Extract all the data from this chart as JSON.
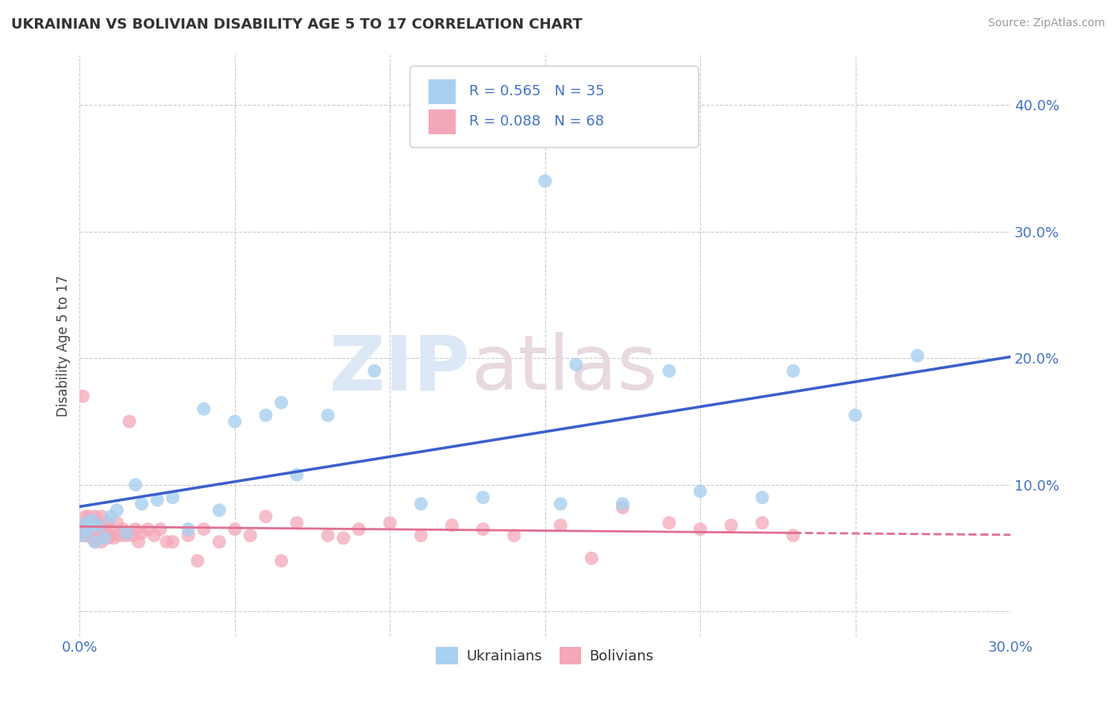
{
  "title": "UKRAINIAN VS BOLIVIAN DISABILITY AGE 5 TO 17 CORRELATION CHART",
  "source_text": "Source: ZipAtlas.com",
  "ylabel": "Disability Age 5 to 17",
  "xlim": [
    0.0,
    0.3
  ],
  "ylim": [
    -0.02,
    0.44
  ],
  "x_ticks": [
    0.0,
    0.05,
    0.1,
    0.15,
    0.2,
    0.25,
    0.3
  ],
  "x_tick_labels": [
    "0.0%",
    "",
    "",
    "",
    "",
    "",
    "30.0%"
  ],
  "y_ticks": [
    0.0,
    0.1,
    0.2,
    0.3,
    0.4
  ],
  "y_tick_labels": [
    "",
    "10.0%",
    "20.0%",
    "30.0%",
    "40.0%"
  ],
  "ukrainian_R": 0.565,
  "ukrainian_N": 35,
  "bolivian_R": 0.088,
  "bolivian_N": 68,
  "ukrainian_color": "#a8d0f0",
  "bolivian_color": "#f4a7b9",
  "ukrainian_line_color": "#3a5fcd",
  "bolivian_line_color": "#e07090",
  "background_color": "#ffffff",
  "grid_color": "#cccccc",
  "ukrainians_x": [
    0.001,
    0.002,
    0.003,
    0.004,
    0.005,
    0.006,
    0.008,
    0.01,
    0.012,
    0.015,
    0.018,
    0.02,
    0.025,
    0.03,
    0.035,
    0.04,
    0.045,
    0.05,
    0.06,
    0.065,
    0.07,
    0.08,
    0.095,
    0.11,
    0.13,
    0.15,
    0.155,
    0.16,
    0.175,
    0.19,
    0.2,
    0.22,
    0.23,
    0.25,
    0.27
  ],
  "ukrainians_y": [
    0.06,
    0.07,
    0.065,
    0.072,
    0.055,
    0.068,
    0.058,
    0.075,
    0.08,
    0.062,
    0.1,
    0.085,
    0.088,
    0.09,
    0.065,
    0.16,
    0.08,
    0.15,
    0.155,
    0.165,
    0.108,
    0.155,
    0.19,
    0.085,
    0.09,
    0.34,
    0.085,
    0.195,
    0.085,
    0.19,
    0.095,
    0.09,
    0.19,
    0.155,
    0.202
  ],
  "bolivians_x": [
    0.001,
    0.001,
    0.001,
    0.002,
    0.002,
    0.002,
    0.002,
    0.003,
    0.003,
    0.003,
    0.003,
    0.004,
    0.004,
    0.004,
    0.005,
    0.005,
    0.005,
    0.005,
    0.006,
    0.006,
    0.007,
    0.007,
    0.008,
    0.008,
    0.009,
    0.009,
    0.01,
    0.01,
    0.011,
    0.012,
    0.013,
    0.014,
    0.015,
    0.016,
    0.017,
    0.018,
    0.019,
    0.02,
    0.022,
    0.024,
    0.026,
    0.028,
    0.03,
    0.035,
    0.038,
    0.04,
    0.045,
    0.05,
    0.055,
    0.06,
    0.065,
    0.07,
    0.08,
    0.085,
    0.09,
    0.1,
    0.11,
    0.12,
    0.13,
    0.14,
    0.155,
    0.165,
    0.175,
    0.19,
    0.2,
    0.21,
    0.22,
    0.23
  ],
  "bolivians_y": [
    0.06,
    0.065,
    0.17,
    0.065,
    0.07,
    0.075,
    0.06,
    0.06,
    0.065,
    0.07,
    0.075,
    0.058,
    0.068,
    0.06,
    0.055,
    0.068,
    0.075,
    0.07,
    0.06,
    0.068,
    0.055,
    0.075,
    0.065,
    0.06,
    0.058,
    0.07,
    0.06,
    0.065,
    0.058,
    0.07,
    0.06,
    0.065,
    0.06,
    0.15,
    0.06,
    0.065,
    0.055,
    0.062,
    0.065,
    0.06,
    0.065,
    0.055,
    0.055,
    0.06,
    0.04,
    0.065,
    0.055,
    0.065,
    0.06,
    0.075,
    0.04,
    0.07,
    0.06,
    0.058,
    0.065,
    0.07,
    0.06,
    0.068,
    0.065,
    0.06,
    0.068,
    0.042,
    0.082,
    0.07,
    0.065,
    0.068,
    0.07,
    0.06
  ]
}
